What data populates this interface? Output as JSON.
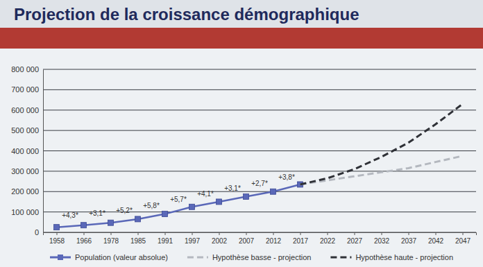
{
  "chart_data": {
    "type": "line",
    "title": "Projection de la croissance démographique",
    "categories": [
      "1958",
      "1966",
      "1978",
      "1985",
      "1991",
      "1997",
      "2002",
      "2007",
      "2012",
      "2017",
      "2022",
      "2027",
      "2032",
      "2037",
      "2042",
      "2047"
    ],
    "series": [
      {
        "name": "Population (valeur absolue)",
        "color": "#5a68b8",
        "marker": "square",
        "line_style": "solid",
        "values": [
          25000,
          35000,
          47000,
          65000,
          90000,
          125000,
          150000,
          175000,
          200000,
          235000,
          null,
          null,
          null,
          null,
          null,
          null
        ]
      },
      {
        "name": "Hypothèse basse - projection",
        "color": "#b4b8bf",
        "line_style": "dashed",
        "values": [
          null,
          null,
          null,
          null,
          null,
          null,
          null,
          null,
          null,
          235000,
          255000,
          275000,
          295000,
          315000,
          345000,
          375000
        ]
      },
      {
        "name": "Hypothèse haute - projection",
        "color": "#2f3137",
        "line_style": "dashed",
        "values": [
          null,
          null,
          null,
          null,
          null,
          null,
          null,
          null,
          null,
          235000,
          265000,
          310000,
          370000,
          440000,
          530000,
          630000
        ]
      }
    ],
    "annotations": [
      "+4,3*",
      "+3,1*",
      "+5,2*",
      "+5,8*",
      "+5,7*",
      "+4,1*",
      "+3,1*",
      "+2,7*",
      "+3,8*"
    ],
    "ylim": [
      0,
      800000
    ],
    "yticks": [
      0,
      {
        "value": 100000,
        "label": "100 000"
      },
      {
        "value": 200000,
        "label": "200 000"
      },
      {
        "value": 300000,
        "label": "300 000"
      },
      {
        "value": 400000,
        "label": "400 000"
      },
      {
        "value": 500000,
        "label": "500 000"
      },
      {
        "value": 600000,
        "label": "600 000"
      },
      {
        "value": 700000,
        "label": "700 000"
      },
      {
        "value": 800000,
        "label": "800 000"
      }
    ],
    "grid": true,
    "legend": "bottom"
  }
}
